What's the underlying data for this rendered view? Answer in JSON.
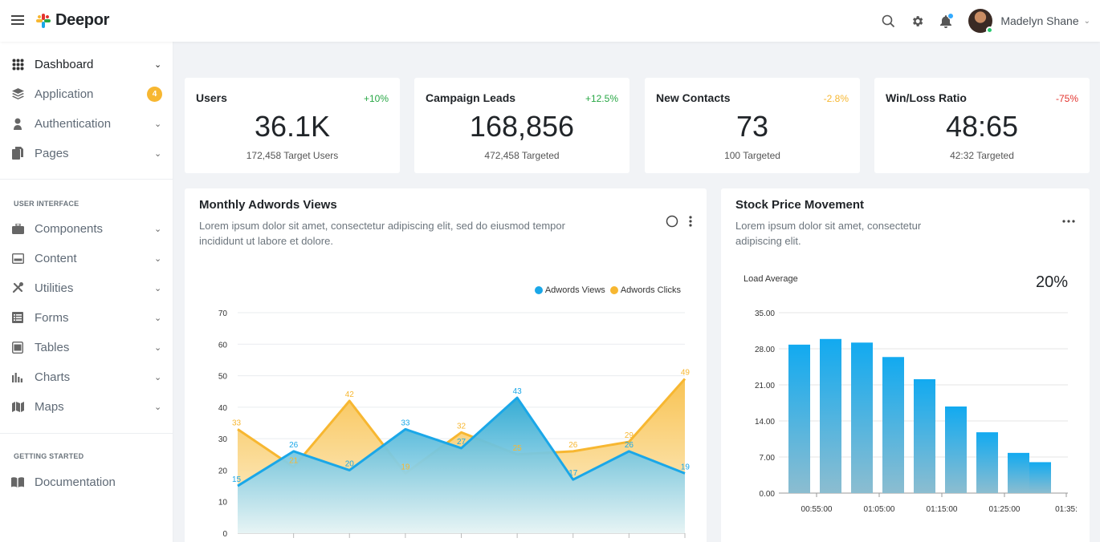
{
  "app": {
    "name": "Deepor"
  },
  "topbar": {
    "user_name": "Madelyn Shane"
  },
  "sidebar": {
    "main_items": [
      {
        "label": "Dashboard",
        "icon": "grid-icon",
        "chevron": true,
        "active": true
      },
      {
        "label": "Application",
        "icon": "layers-icon",
        "badge": "4"
      },
      {
        "label": "Authentication",
        "icon": "user-icon",
        "chevron": true
      },
      {
        "label": "Pages",
        "icon": "files-icon",
        "chevron": true
      }
    ],
    "section_ui": "USER INTERFACE",
    "ui_items": [
      {
        "label": "Components",
        "icon": "briefcase-icon"
      },
      {
        "label": "Content",
        "icon": "window-icon"
      },
      {
        "label": "Utilities",
        "icon": "tools-icon"
      },
      {
        "label": "Forms",
        "icon": "list-icon"
      },
      {
        "label": "Tables",
        "icon": "table-icon"
      },
      {
        "label": "Charts",
        "icon": "bar-chart-icon"
      },
      {
        "label": "Maps",
        "icon": "map-icon"
      }
    ],
    "section_started": "GETTING STARTED",
    "started_items": [
      {
        "label": "Documentation",
        "icon": "book-icon"
      }
    ]
  },
  "stats": [
    {
      "title": "Users",
      "change": "+10%",
      "value": "36.1K",
      "sub": "172,458 Target Users",
      "color": "#28a745"
    },
    {
      "title": "Campaign Leads",
      "change": "+12.5%",
      "value": "168,856",
      "sub": "472,458 Targeted",
      "color": "#28a745"
    },
    {
      "title": "New Contacts",
      "change": "-2.8%",
      "value": "73",
      "sub": "100 Targeted",
      "color": "#f7b731"
    },
    {
      "title": "Win/Loss Ratio",
      "change": "-75%",
      "value": "48:65",
      "sub": "42:32 Targeted",
      "color": "#e3342f"
    }
  ],
  "adwords_panel": {
    "title": "Monthly Adwords Views",
    "description_line1": "Lorem ipsum dolor sit amet, consectetur adipiscing elit, sed do eiusmod tempor",
    "description_line2": "incididunt ut labore et dolore."
  },
  "stock_panel": {
    "title": "Stock Price Movement",
    "description_line1": "Lorem ipsum dolor sit amet, consectetur",
    "description_line2": "adipiscing elit.",
    "load_label": "Load Average",
    "load_value": "20%"
  },
  "chart_data": [
    {
      "type": "area",
      "title": "Monthly Adwords Views",
      "ylim": [
        0,
        70
      ],
      "yticks": [
        0,
        10,
        20,
        30,
        40,
        50,
        60,
        70
      ],
      "grid": true,
      "legend_position": "top-right",
      "series": [
        {
          "name": "Adwords Views",
          "color": "#1aa7e8",
          "values": [
            15,
            26,
            20,
            33,
            27,
            43,
            17,
            26,
            19
          ]
        },
        {
          "name": "Adwords Clicks",
          "color": "#f7b731",
          "values": [
            33,
            21,
            42,
            19,
            32,
            25,
            26,
            29,
            49
          ]
        }
      ]
    },
    {
      "type": "bar",
      "title": "Stock Price Movement",
      "ylim": [
        0,
        35
      ],
      "yticks": [
        "0.00",
        "7.00",
        "14.00",
        "21.00",
        "28.00",
        "35.00"
      ],
      "xticks": [
        "00:55:00",
        "01:05:00",
        "01:15:00",
        "01:25:00",
        "01:35:"
      ],
      "values": [
        28.8,
        29.9,
        29.2,
        26.4,
        22.1,
        16.8,
        11.8,
        7.8,
        6.0
      ],
      "color": "#1aa7e8",
      "grid": true
    }
  ]
}
